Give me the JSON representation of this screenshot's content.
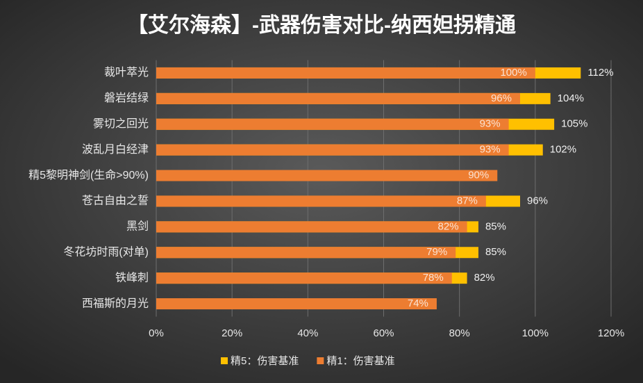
{
  "chart_data": {
    "type": "bar",
    "orientation": "horizontal",
    "overlap": true,
    "title": "【艾尔海森】-武器伤害对比-纳西妲拐精通",
    "categories": [
      "裁叶萃光",
      "磐岩结绿",
      "雾切之回光",
      "波乱月白经津",
      "精5黎明神剑(生命>90%)",
      "苍古自由之誓",
      "黑剑",
      "冬花坊时雨(对单)",
      "铁峰刺",
      "西福斯的月光"
    ],
    "series": [
      {
        "name": "精5：伤害基准",
        "color": "#FFC000",
        "values": [
          112,
          104,
          105,
          102,
          null,
          96,
          85,
          85,
          82,
          null
        ],
        "value_labels": [
          "112%",
          "104%",
          "105%",
          "102%",
          null,
          "96%",
          "85%",
          "85%",
          "82%",
          null
        ]
      },
      {
        "name": "精1：伤害基准",
        "color": "#ED7D31",
        "values": [
          100,
          96,
          93,
          93,
          90,
          87,
          82,
          79,
          78,
          74
        ],
        "value_labels": [
          "100%",
          "96%",
          "93%",
          "93%",
          "90%",
          "87%",
          "82%",
          "79%",
          "78%",
          "74%"
        ]
      }
    ],
    "xlim": [
      0,
      120
    ],
    "xticks": [
      {
        "value": 0,
        "label": "0%"
      },
      {
        "value": 20,
        "label": "20%"
      },
      {
        "value": 40,
        "label": "40%"
      },
      {
        "value": 60,
        "label": "60%"
      },
      {
        "value": 80,
        "label": "80%"
      },
      {
        "value": 100,
        "label": "100%"
      },
      {
        "value": 120,
        "label": "120%"
      }
    ],
    "grid": true,
    "legend": "bottom"
  }
}
